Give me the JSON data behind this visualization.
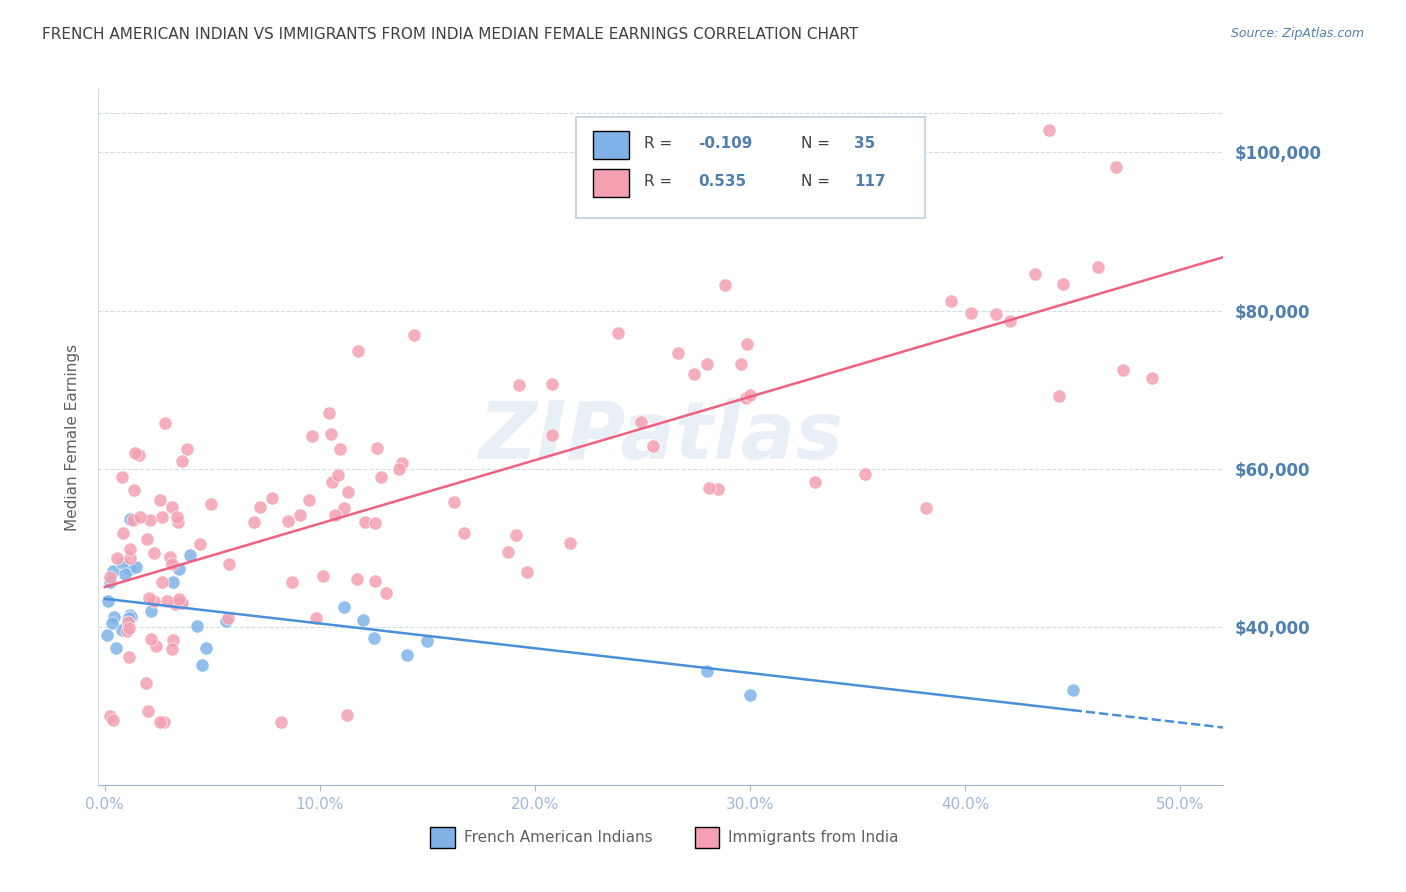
{
  "title": "FRENCH AMERICAN INDIAN VS IMMIGRANTS FROM INDIA MEDIAN FEMALE EARNINGS CORRELATION CHART",
  "source": "Source: ZipAtlas.com",
  "ylabel": "Median Female Earnings",
  "ytick_labels": [
    "$40,000",
    "$60,000",
    "$80,000",
    "$100,000"
  ],
  "ytick_values": [
    40000,
    60000,
    80000,
    100000
  ],
  "ymin": 20000,
  "ymax": 108000,
  "xmin": -0.003,
  "xmax": 0.52,
  "watermark": "ZIPatlas",
  "blue_color": "#7fb3e8",
  "pink_color": "#f4a0b0",
  "blue_line_color": "#4a90d9",
  "pink_line_color": "#f06080",
  "axis_color": "#a0b8d8",
  "grid_color": "#d0dce8",
  "text_color": "#5080b0",
  "title_color": "#404040",
  "blue_R": -0.109,
  "blue_N": 35,
  "pink_R": 0.535,
  "pink_N": 117,
  "blue_intercept": 43000,
  "blue_slope": -8700,
  "pink_intercept": 42000,
  "pink_slope": 95000
}
